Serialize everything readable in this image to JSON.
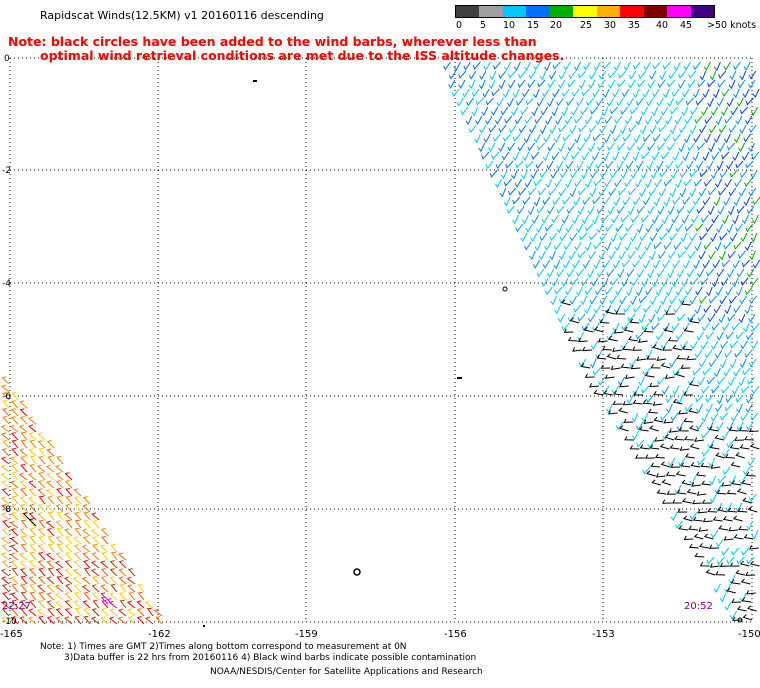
{
  "title": "Rapidscat Winds(12.5KM)  v1  20160116  descending",
  "note": {
    "line1": "Note: black circles have been added to the wind barbs, wherever less than",
    "line2": "optimal wind retrieval conditions are met due to the ISS altitude changes."
  },
  "legend": {
    "labels": [
      "0",
      "5",
      "10",
      "15",
      "20",
      "25",
      "30",
      "35",
      "40",
      "45",
      ">50 knots"
    ],
    "colors": [
      "#404040",
      "#a0a0a0",
      "#00c8ff",
      "#0070ff",
      "#00b000",
      "#ffff00",
      "#ffb000",
      "#ff0000",
      "#800000",
      "#ff00ff",
      "#400080"
    ]
  },
  "axes": {
    "lat_labels": [
      "0",
      "-2",
      "-4",
      "-6",
      "-8",
      "-10"
    ],
    "lon_labels": [
      "-165",
      "-162",
      "-159",
      "-156",
      "-153",
      "-150"
    ]
  },
  "times": {
    "left": "22:27",
    "right": "20:52"
  },
  "footnote": {
    "line1": "Note: 1) Times are GMT 2)Times along bottom correspond to measurement at 0N",
    "line2": "3)Data buffer is 22 hrs from 20160116 4) Black wind barbs indicate possible contamination"
  },
  "credit": "NOAA/NESDIS/Center for Satellite Applications and Research"
}
